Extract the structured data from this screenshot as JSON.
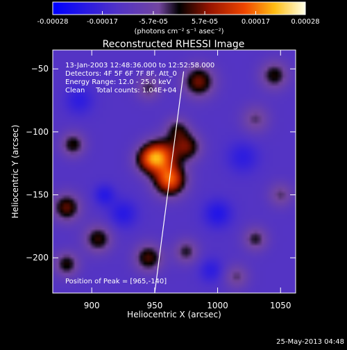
{
  "colorbar": {
    "ticks": [
      {
        "value": -0.00028,
        "label": "-0.00028"
      },
      {
        "value": -0.00017,
        "label": "-0.00017"
      },
      {
        "value": -5.7e-05,
        "label": "-5.7e-05"
      },
      {
        "value": 5.7e-05,
        "label": "5.7e-05"
      },
      {
        "value": 0.00017,
        "label": "0.00017"
      },
      {
        "value": 0.00028,
        "label": "0.00028"
      }
    ],
    "min": -0.00028,
    "max": 0.00028,
    "units": "(photons cm⁻² s⁻¹ asec⁻²)"
  },
  "chart_data": {
    "type": "heatmap",
    "title": "Reconstructed RHESSI Image",
    "xlabel": "Heliocentric X (arcsec)",
    "ylabel": "Heliocentric Y (arcsec)",
    "xlim": [
      869,
      1062
    ],
    "ylim": [
      -228,
      -35
    ],
    "xticks": [
      900,
      950,
      1000,
      1050
    ],
    "yticks": [
      -50,
      -100,
      -150,
      -200
    ],
    "grid": false,
    "colormap": "RHESSI red-temperature with blue/purple negative values",
    "peak": [
      965,
      -140
    ],
    "limb_line": [
      [
        973,
        -52
      ],
      [
        950,
        -228
      ]
    ],
    "sources": [
      {
        "x": 962,
        "y": -138,
        "amp": 0.00028,
        "sigma": 9
      },
      {
        "x": 955,
        "y": -118,
        "amp": 0.00022,
        "sigma": 9
      },
      {
        "x": 945,
        "y": -122,
        "amp": 0.00018,
        "sigma": 8
      },
      {
        "x": 976,
        "y": -112,
        "amp": 0.00016,
        "sigma": 8
      },
      {
        "x": 968,
        "y": -98,
        "amp": 0.00012,
        "sigma": 7
      },
      {
        "x": 985,
        "y": -60,
        "amp": 0.00018,
        "sigma": 9
      },
      {
        "x": 1045,
        "y": -55,
        "amp": 0.00014,
        "sigma": 8
      },
      {
        "x": 1030,
        "y": -90,
        "amp": 0.0001,
        "sigma": 8
      },
      {
        "x": 885,
        "y": -110,
        "amp": 0.00014,
        "sigma": 7
      },
      {
        "x": 880,
        "y": -160,
        "amp": 0.00017,
        "sigma": 8
      },
      {
        "x": 905,
        "y": -185,
        "amp": 0.00015,
        "sigma": 8
      },
      {
        "x": 880,
        "y": -205,
        "amp": 0.00014,
        "sigma": 7
      },
      {
        "x": 945,
        "y": -200,
        "amp": 0.00016,
        "sigma": 8
      },
      {
        "x": 975,
        "y": -195,
        "amp": 0.00012,
        "sigma": 7
      },
      {
        "x": 945,
        "y": -65,
        "amp": 0.00011,
        "sigma": 7
      },
      {
        "x": 1050,
        "y": -150,
        "amp": 0.0001,
        "sigma": 7
      },
      {
        "x": 1030,
        "y": -185,
        "amp": 0.00012,
        "sigma": 7
      },
      {
        "x": 1015,
        "y": -215,
        "amp": 0.0001,
        "sigma": 7
      },
      {
        "x": 1000,
        "y": -165,
        "amp": -9e-05,
        "sigma": 8
      },
      {
        "x": 925,
        "y": -165,
        "amp": -8e-05,
        "sigma": 8
      },
      {
        "x": 1020,
        "y": -120,
        "amp": -7e-05,
        "sigma": 9
      },
      {
        "x": 890,
        "y": -75,
        "amp": -7e-05,
        "sigma": 8
      },
      {
        "x": 910,
        "y": -150,
        "amp": -8e-05,
        "sigma": 6
      },
      {
        "x": 995,
        "y": -210,
        "amp": -7e-05,
        "sigma": 7
      }
    ]
  },
  "annotations": [
    "13-Jan-2003 12:48:36.000 to 12:52:58.000",
    "Detectors: 4F 5F 6F 7F 8F, Att_0",
    "Energy Range: 12.0 - 25.0 keV",
    "Clean     Total counts: 1.04E+04"
  ],
  "peak_label": "Position of Peak = [965,-140]",
  "footer_date": "25-May-2013 04:48"
}
